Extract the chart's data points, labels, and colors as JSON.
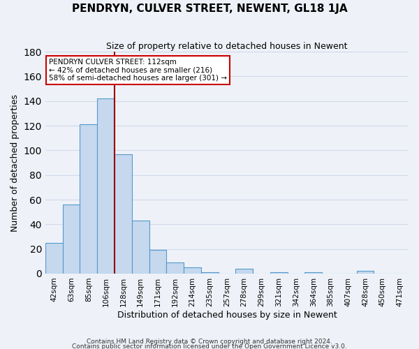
{
  "title": "PENDRYN, CULVER STREET, NEWENT, GL18 1JA",
  "subtitle": "Size of property relative to detached houses in Newent",
  "xlabel": "Distribution of detached houses by size in Newent",
  "ylabel": "Number of detached properties",
  "categories": [
    "42sqm",
    "63sqm",
    "85sqm",
    "106sqm",
    "128sqm",
    "149sqm",
    "171sqm",
    "192sqm",
    "214sqm",
    "235sqm",
    "257sqm",
    "278sqm",
    "299sqm",
    "321sqm",
    "342sqm",
    "364sqm",
    "385sqm",
    "407sqm",
    "428sqm",
    "450sqm",
    "471sqm"
  ],
  "values": [
    25,
    56,
    121,
    142,
    97,
    43,
    19,
    9,
    5,
    1,
    0,
    4,
    0,
    1,
    0,
    1,
    0,
    0,
    2,
    0,
    0
  ],
  "bar_color": "#c5d8ee",
  "bar_edge_color": "#5599cc",
  "background_color": "#eef2f8",
  "grid_color": "#d0d8e8",
  "vline_x_index": 4,
  "vline_color": "#990000",
  "annotation_title": "PENDRYN CULVER STREET: 112sqm",
  "annotation_line1": "← 42% of detached houses are smaller (216)",
  "annotation_line2": "58% of semi-detached houses are larger (301) →",
  "annotation_box_color": "#ffffff",
  "annotation_box_edge": "#cc0000",
  "ylim": [
    0,
    180
  ],
  "yticks": [
    0,
    20,
    40,
    60,
    80,
    100,
    120,
    140,
    160,
    180
  ],
  "footer1": "Contains HM Land Registry data © Crown copyright and database right 2024.",
  "footer2": "Contains public sector information licensed under the Open Government Licence v3.0."
}
